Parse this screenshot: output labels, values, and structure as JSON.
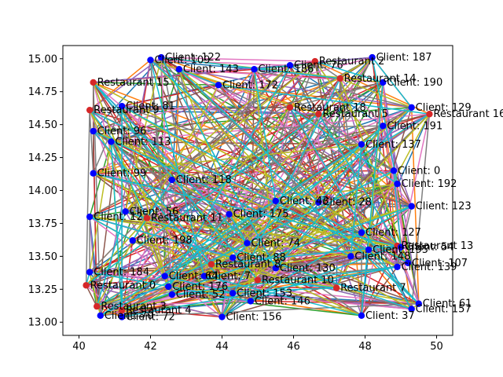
{
  "chart_data": {
    "type": "scatter",
    "title": "",
    "xlabel": "",
    "ylabel": "",
    "xlim": [
      39.55,
      50.45
    ],
    "ylim": [
      12.9,
      15.1
    ],
    "xticks": [
      40,
      42,
      44,
      46,
      48,
      50
    ],
    "yticks": [
      13.0,
      13.25,
      13.5,
      13.75,
      14.0,
      14.25,
      14.5,
      14.75,
      15.0
    ],
    "xtick_labels": [
      "40",
      "42",
      "44",
      "46",
      "48",
      "50"
    ],
    "ytick_labels": [
      "13.00",
      "13.25",
      "13.50",
      "13.75",
      "14.00",
      "14.25",
      "14.50",
      "14.75",
      "15.00"
    ],
    "grid": false,
    "legend": "none",
    "line_colors": [
      "#1f77b4",
      "#ff7f0e",
      "#2ca02c",
      "#d62728",
      "#9467bd",
      "#8c564b",
      "#e377c2",
      "#7f7f7f",
      "#bcbd22",
      "#17becf"
    ],
    "series": [
      {
        "name": "Restaurant",
        "color": "#d62728",
        "points": [
          {
            "label": "Restaurant 2",
            "x": 46.6,
            "y": 14.98
          },
          {
            "label": "Restaurant 14",
            "x": 47.3,
            "y": 14.85
          },
          {
            "label": "Restaurant 15",
            "x": 40.4,
            "y": 14.82
          },
          {
            "label": "Restaurant 9",
            "x": 40.3,
            "y": 14.61
          },
          {
            "label": "Restaurant 5",
            "x": 46.7,
            "y": 14.58
          },
          {
            "label": "Restaurant 16",
            "x": 49.8,
            "y": 14.58
          },
          {
            "label": "Restaurant 18",
            "x": 45.9,
            "y": 14.63
          },
          {
            "label": "Restaurant 11",
            "x": 41.9,
            "y": 13.79
          },
          {
            "label": "Restaurant 13",
            "x": 48.9,
            "y": 13.58
          },
          {
            "label": "Restaurant 8",
            "x": 43.7,
            "y": 13.44
          },
          {
            "label": "Restaurant 10",
            "x": 45.0,
            "y": 13.32
          },
          {
            "label": "Restaurant 0",
            "x": 40.2,
            "y": 13.28
          },
          {
            "label": "Restaurant 7",
            "x": 47.2,
            "y": 13.26
          },
          {
            "label": "Restaurant 3",
            "x": 40.5,
            "y": 13.12
          },
          {
            "label": "Restaurant 4",
            "x": 41.2,
            "y": 13.09
          }
        ]
      },
      {
        "name": "Client",
        "color": "#0000ff",
        "points": [
          {
            "label": "Client: 187",
            "x": 48.2,
            "y": 15.01
          },
          {
            "label": "Client: 122",
            "x": 42.3,
            "y": 15.01
          },
          {
            "label": "Client: 109",
            "x": 42.0,
            "y": 14.99
          },
          {
            "label": "Client: 143",
            "x": 42.8,
            "y": 14.92
          },
          {
            "label": "Client: 186",
            "x": 44.9,
            "y": 14.92
          },
          {
            "label": "Client: 76",
            "x": 45.9,
            "y": 14.95
          },
          {
            "label": "Client: 190",
            "x": 48.5,
            "y": 14.82
          },
          {
            "label": "Client: 172",
            "x": 43.9,
            "y": 14.8
          },
          {
            "label": "Client: 81",
            "x": 41.2,
            "y": 14.64
          },
          {
            "label": "Client: 129",
            "x": 49.3,
            "y": 14.63
          },
          {
            "label": "Client: 191",
            "x": 48.5,
            "y": 14.49
          },
          {
            "label": "Client: 96",
            "x": 40.4,
            "y": 14.45
          },
          {
            "label": "Client: 113",
            "x": 40.9,
            "y": 14.37
          },
          {
            "label": "Client: 137",
            "x": 47.9,
            "y": 14.35
          },
          {
            "label": "Client: 0",
            "x": 48.8,
            "y": 14.15
          },
          {
            "label": "Client: 99",
            "x": 40.4,
            "y": 14.13
          },
          {
            "label": "Client: 192",
            "x": 48.9,
            "y": 14.05
          },
          {
            "label": "Client: 118",
            "x": 42.6,
            "y": 14.08
          },
          {
            "label": "Client: 28",
            "x": 46.7,
            "y": 13.91
          },
          {
            "label": "Client: 123",
            "x": 49.3,
            "y": 13.88
          },
          {
            "label": "Client: 43",
            "x": 45.5,
            "y": 13.92
          },
          {
            "label": "Client: 175",
            "x": 44.2,
            "y": 13.82
          },
          {
            "label": "Client: 56",
            "x": 41.3,
            "y": 13.84
          },
          {
            "label": "Client: 12",
            "x": 40.3,
            "y": 13.8
          },
          {
            "label": "Client: 127",
            "x": 47.9,
            "y": 13.68
          },
          {
            "label": "Client: 54",
            "x": 49.0,
            "y": 13.57
          },
          {
            "label": "Client: 107",
            "x": 49.2,
            "y": 13.45
          },
          {
            "label": "Client: 148",
            "x": 47.6,
            "y": 13.5
          },
          {
            "label": "Client: 198",
            "x": 41.5,
            "y": 13.62
          },
          {
            "label": "Client: 74",
            "x": 44.7,
            "y": 13.6
          },
          {
            "label": "Client: 88",
            "x": 44.3,
            "y": 13.49
          },
          {
            "label": "Client: 195",
            "x": 48.1,
            "y": 13.55
          },
          {
            "label": "Client: 139",
            "x": 48.9,
            "y": 13.42
          },
          {
            "label": "Client: 130",
            "x": 45.5,
            "y": 13.41
          },
          {
            "label": "Client: 184",
            "x": 40.3,
            "y": 13.38
          },
          {
            "label": "Client: 64",
            "x": 42.4,
            "y": 13.35
          },
          {
            "label": "Client: 7",
            "x": 43.5,
            "y": 13.35
          },
          {
            "label": "Client: 176",
            "x": 42.5,
            "y": 13.27
          },
          {
            "label": "Client: 52",
            "x": 42.6,
            "y": 13.21
          },
          {
            "label": "Client: 153",
            "x": 44.3,
            "y": 13.22
          },
          {
            "label": "Client: 146",
            "x": 44.8,
            "y": 13.16
          },
          {
            "label": "Client: 61",
            "x": 49.5,
            "y": 13.14
          },
          {
            "label": "Client: 157",
            "x": 49.3,
            "y": 13.1
          },
          {
            "label": "Client: 70",
            "x": 40.6,
            "y": 13.05
          },
          {
            "label": "Client: 72",
            "x": 41.2,
            "y": 13.04
          },
          {
            "label": "Client: 156",
            "x": 44.0,
            "y": 13.04
          },
          {
            "label": "Client: 37",
            "x": 47.9,
            "y": 13.05
          }
        ]
      }
    ]
  }
}
